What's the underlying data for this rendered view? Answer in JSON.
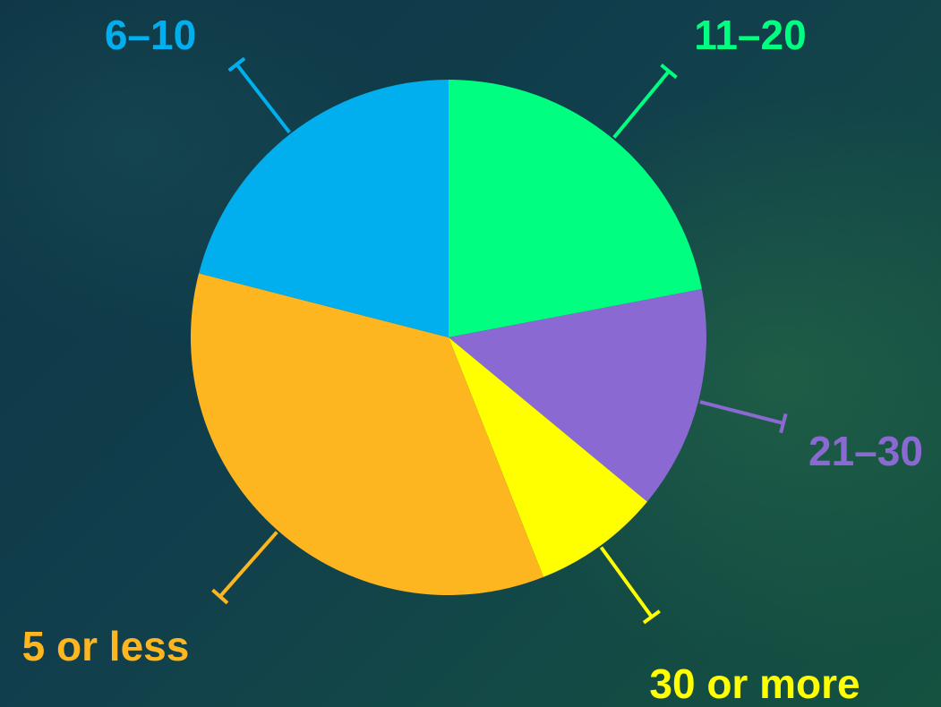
{
  "chart_data": {
    "type": "pie",
    "categories": [
      "11–20",
      "21–30",
      "30 or more",
      "5 or less",
      "6–10"
    ],
    "values": [
      22,
      14,
      8,
      35,
      21
    ],
    "colors": [
      "#00ff80",
      "#8a6ad2",
      "#ffff00",
      "#fdb61f",
      "#01aeee"
    ],
    "title": "",
    "legend": "none (labels beside slices)"
  }
}
